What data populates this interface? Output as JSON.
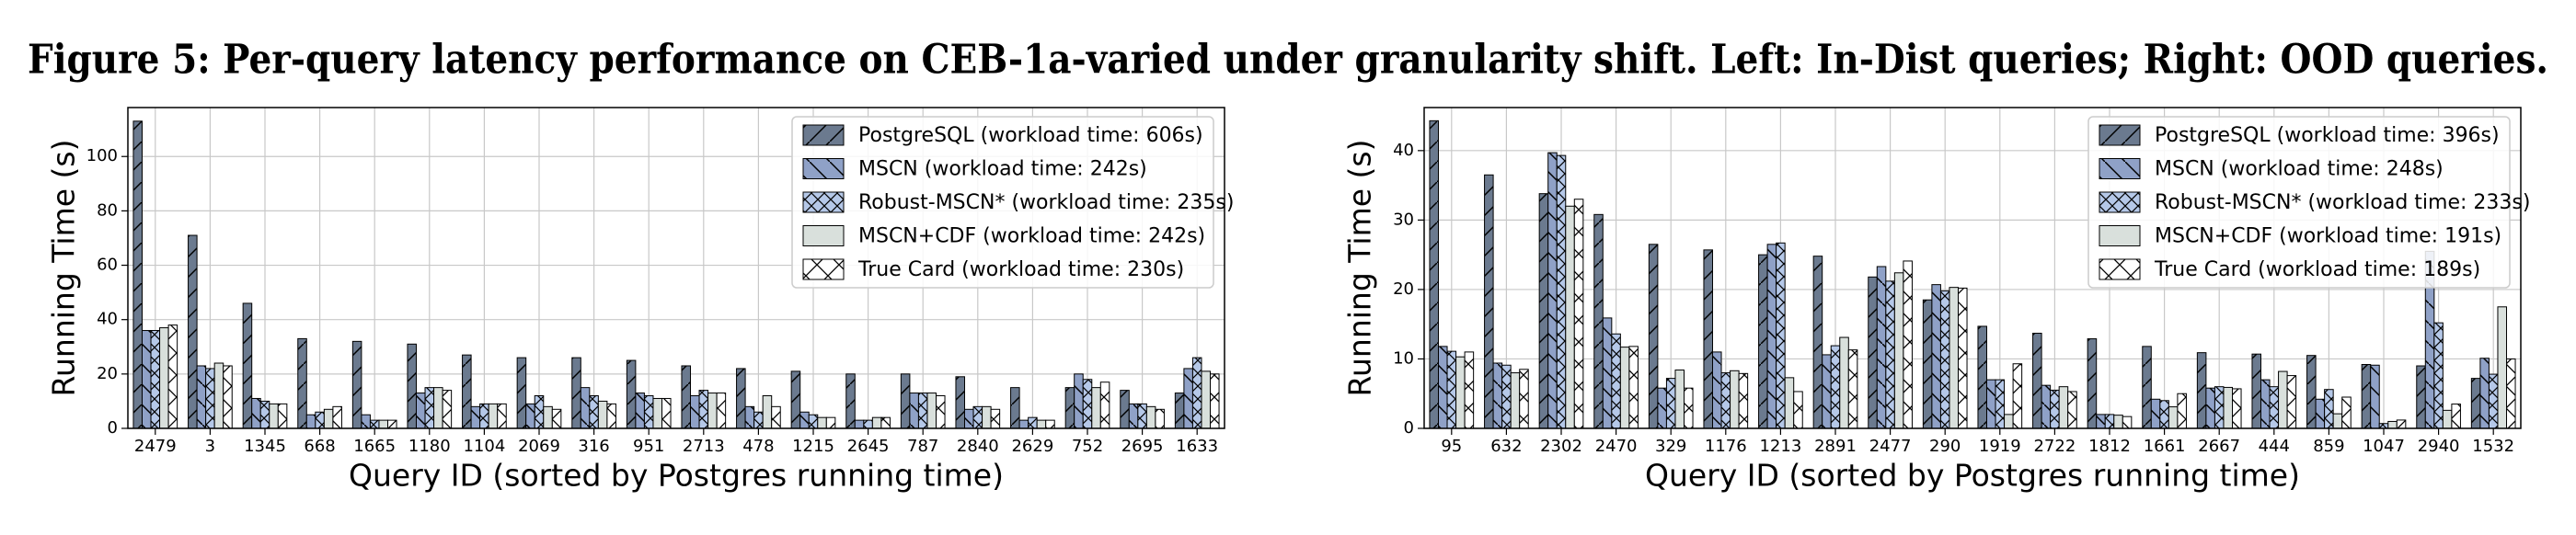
{
  "title": "Figure 5: Per-query latency performance on CEB-1a-varied under granularity shift. Left: In-Dist queries; Right: OOD queries.",
  "chart_data": [
    {
      "type": "bar",
      "xlabel": "Query ID (sorted by Postgres running time)",
      "ylabel": "Running Time (s)",
      "categories": [
        "2479",
        "3",
        "1345",
        "668",
        "1665",
        "1180",
        "1104",
        "2069",
        "316",
        "951",
        "2713",
        "478",
        "1215",
        "2645",
        "787",
        "2840",
        "2629",
        "752",
        "2695",
        "1633"
      ],
      "series": [
        {
          "name": "PostgreSQL (workload time: 606s)",
          "color": "#6b7a8f",
          "hatch": "/",
          "values": [
            113,
            71,
            46,
            33,
            32,
            31,
            27,
            26,
            26,
            25,
            23,
            22,
            21,
            20,
            20,
            19,
            15,
            15,
            14,
            13
          ]
        },
        {
          "name": "MSCN (workload time: 242s)",
          "color": "#8fa1c7",
          "hatch": "\\",
          "values": [
            36,
            23,
            11,
            5,
            5,
            13,
            8,
            9,
            15,
            13,
            12,
            8,
            6,
            3,
            13,
            7,
            3,
            20,
            9,
            22
          ]
        },
        {
          "name": "Robust-MSCN* (workload time: 235s)",
          "color": "#b5c8e8",
          "hatch": "x",
          "values": [
            36,
            22,
            10,
            6,
            3,
            15,
            9,
            12,
            12,
            12,
            14,
            6,
            5,
            3,
            13,
            8,
            4,
            18,
            9,
            26
          ]
        },
        {
          "name": "MSCN+CDF (workload time: 242s)",
          "color": "#d9e0dc",
          "hatch": "",
          "values": [
            37,
            24,
            9,
            7,
            3,
            15,
            9,
            8,
            10,
            11,
            13,
            12,
            4,
            4,
            13,
            8,
            3,
            15,
            8,
            21
          ]
        },
        {
          "name": "True Card (workload time: 230s)",
          "color": "#ffffff",
          "hatch": "X",
          "values": [
            38,
            23,
            9,
            8,
            3,
            14,
            9,
            7,
            9,
            11,
            13,
            8,
            4,
            4,
            12,
            7,
            3,
            17,
            7,
            20
          ]
        }
      ],
      "ylim": [
        0,
        118
      ],
      "yticks": [
        0,
        20,
        40,
        60,
        80,
        100
      ],
      "grid": true,
      "legend": "upper right"
    },
    {
      "type": "bar",
      "xlabel": "Query ID (sorted by Postgres running time)",
      "ylabel": "Running Time (s)",
      "categories": [
        "95",
        "632",
        "2302",
        "2470",
        "329",
        "1176",
        "1213",
        "2891",
        "2477",
        "290",
        "1919",
        "2722",
        "1812",
        "1661",
        "2667",
        "444",
        "859",
        "1047",
        "2940",
        "1532"
      ],
      "series": [
        {
          "name": "PostgreSQL (workload time: 396s)",
          "color": "#6b7a8f",
          "hatch": "/",
          "values": [
            44.3,
            36.5,
            33.8,
            30.8,
            26.5,
            25.7,
            25,
            24.8,
            21.8,
            18.5,
            14.7,
            13.7,
            12.9,
            11.8,
            10.9,
            10.7,
            10.5,
            9.2,
            9,
            7.2
          ]
        },
        {
          "name": "MSCN (workload time: 248s)",
          "color": "#8fa1c7",
          "hatch": "\\",
          "values": [
            11.8,
            9.4,
            39.7,
            15.9,
            5.8,
            11,
            26.5,
            10.6,
            23.3,
            20.7,
            7,
            6.2,
            2,
            4.2,
            5.8,
            7,
            4.2,
            9.1,
            25.5,
            10.1
          ]
        },
        {
          "name": "Robust-MSCN* (workload time: 233s)",
          "color": "#b5c8e8",
          "hatch": "x",
          "values": [
            11.1,
            9.1,
            39.3,
            13.6,
            7.2,
            8,
            26.7,
            11.9,
            21.2,
            19.8,
            7,
            5.5,
            2,
            4,
            6,
            6,
            5.6,
            0.7,
            15.2,
            7.8
          ]
        },
        {
          "name": "MSCN+CDF (workload time: 191s)",
          "color": "#d9e0dc",
          "hatch": "",
          "values": [
            10.3,
            8,
            32,
            11.7,
            8.4,
            8.3,
            7.3,
            13.1,
            22.4,
            20.3,
            2,
            6,
            1.9,
            3.1,
            5.9,
            8.2,
            2.1,
            1,
            2.6,
            17.5
          ]
        },
        {
          "name": "True Card (workload time: 189s)",
          "color": "#ffffff",
          "hatch": "X",
          "values": [
            11,
            8.5,
            33,
            11.8,
            5.8,
            7.9,
            5.3,
            11.3,
            24.1,
            20.2,
            9.3,
            5.3,
            1.7,
            5,
            5.7,
            7.6,
            4.5,
            1.2,
            3.5,
            10
          ]
        }
      ],
      "ylim": [
        0,
        46.2
      ],
      "yticks": [
        0,
        10,
        20,
        30,
        40
      ],
      "grid": true,
      "legend": "upper right"
    }
  ]
}
